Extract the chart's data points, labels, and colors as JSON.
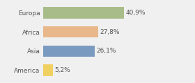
{
  "categories": [
    "Europa",
    "Africa",
    "Asia",
    "America"
  ],
  "values": [
    40.9,
    27.8,
    26.1,
    5.2
  ],
  "labels": [
    "40,9%",
    "27,8%",
    "26,1%",
    "5,2%"
  ],
  "bar_colors": [
    "#a8bc8a",
    "#e8b88a",
    "#7b9abf",
    "#f0d060"
  ],
  "background_color": "#f0f0f0",
  "xlim": [
    0,
    65
  ],
  "label_fontsize": 6.5,
  "tick_fontsize": 6.5,
  "bar_height": 0.6
}
